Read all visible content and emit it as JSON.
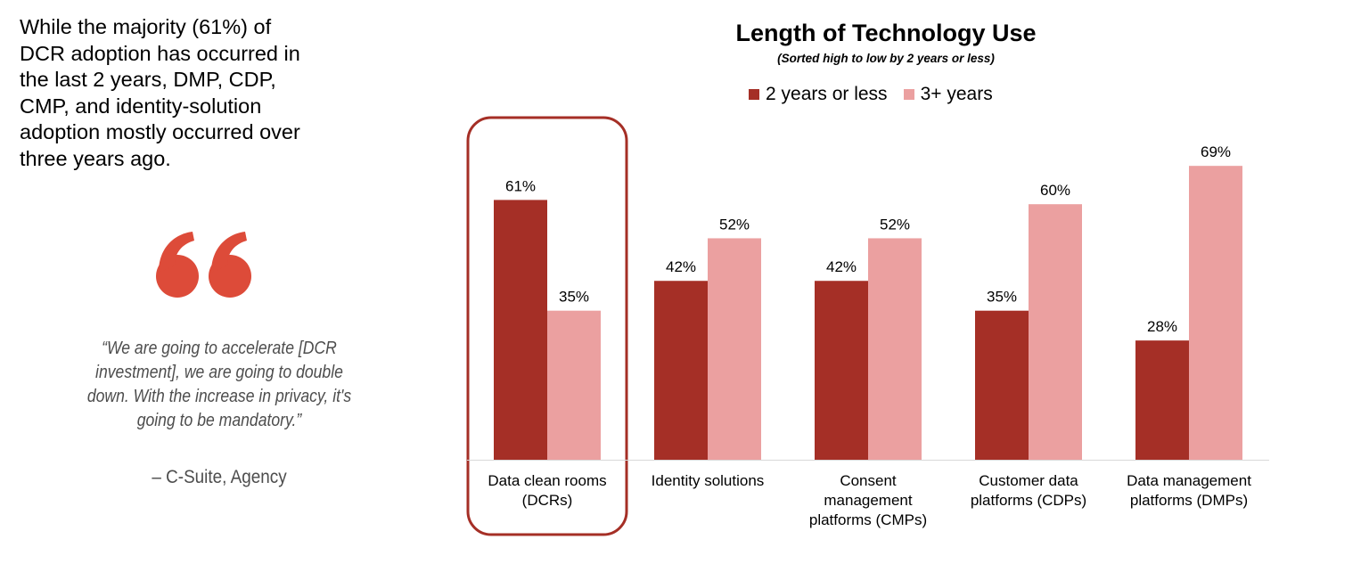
{
  "summary": {
    "text": "While the majority (61%) of\nDCR adoption has occurred in\nthe last 2 years, DMP, CDP,\nCMP, and identity-solution\nadoption mostly occurred over\nthree years ago."
  },
  "quote": {
    "text": "“We are going to accelerate [DCR\ninvestment], we are going to double\ndown. With the increase in privacy, it's\ngoing to be mandatory.”",
    "attribution": "– C-Suite, Agency",
    "mark_color": "#dd4b39"
  },
  "colors": {
    "series_recent": "#a52f26",
    "series_older": "#eba0a0",
    "highlight": "#a52f26",
    "axis": "#d9d9d9"
  },
  "chart_data": {
    "type": "bar",
    "title": "Length of Technology Use",
    "subtitle": "(Sorted high to low by 2 years or less)",
    "categories": [
      [
        "Data clean rooms",
        "(DCRs)"
      ],
      [
        "Identity solutions"
      ],
      [
        "Consent",
        "management",
        "platforms (CMPs)"
      ],
      [
        "Customer data",
        "platforms (CDPs)"
      ],
      [
        "Data management",
        "platforms (DMPs)"
      ]
    ],
    "series": [
      {
        "name": "2 years or less",
        "values": [
          61,
          42,
          42,
          35,
          28
        ],
        "labels": [
          "61%",
          "42%",
          "42%",
          "35%",
          "28%"
        ]
      },
      {
        "name": "3+ years",
        "values": [
          35,
          52,
          52,
          60,
          69
        ],
        "labels": [
          "35%",
          "52%",
          "52%",
          "60%",
          "69%"
        ]
      }
    ],
    "unit": "%",
    "ylim": [
      0,
      100
    ],
    "grid": false,
    "legend_position": "top",
    "highlighted_category": "Data clean rooms"
  }
}
